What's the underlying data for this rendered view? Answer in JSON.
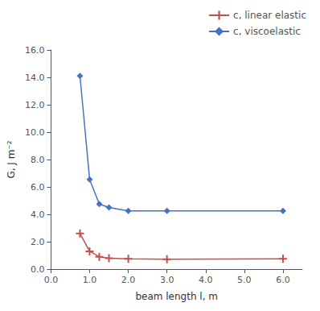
{
  "chart_data": {
    "type": "line",
    "xlabel": "beam length l, m",
    "ylabel": "G, J m⁻²",
    "x": [
      0.75,
      1.0,
      1.25,
      1.5,
      2.0,
      3.0,
      6.0
    ],
    "series": [
      {
        "name": "c, linear elastic",
        "color": "#C0504D",
        "marker": "plus",
        "values": [
          2.6,
          1.3,
          0.9,
          0.8,
          0.75,
          0.72,
          0.75
        ]
      },
      {
        "name": "c, viscoelastic",
        "color": "#4472C4",
        "marker": "diamond",
        "values": [
          14.1,
          6.55,
          4.75,
          4.5,
          4.25,
          4.25,
          4.25
        ]
      }
    ],
    "xlim": [
      0.0,
      6.5
    ],
    "ylim": [
      0.0,
      16.0
    ],
    "xticks": [
      {
        "value": 0,
        "label": "0.0"
      },
      {
        "value": 1,
        "label": "1.0"
      },
      {
        "value": 2,
        "label": "2.0"
      },
      {
        "value": 3,
        "label": "3.0"
      },
      {
        "value": 4,
        "label": "4.0"
      },
      {
        "value": 5,
        "label": "5.0"
      },
      {
        "value": 6,
        "label": "6.0"
      }
    ],
    "yticks": [
      {
        "value": 0,
        "label": "0.0"
      },
      {
        "value": 2,
        "label": "2.0"
      },
      {
        "value": 4,
        "label": "4.0"
      },
      {
        "value": 6,
        "label": "6.0"
      },
      {
        "value": 8,
        "label": "8.0"
      },
      {
        "value": 10,
        "label": "10.0"
      },
      {
        "value": 12,
        "label": "12.0"
      },
      {
        "value": 14,
        "label": "14.0"
      },
      {
        "value": 16,
        "label": "16.0"
      }
    ],
    "grid": false,
    "legend": "upper right"
  }
}
